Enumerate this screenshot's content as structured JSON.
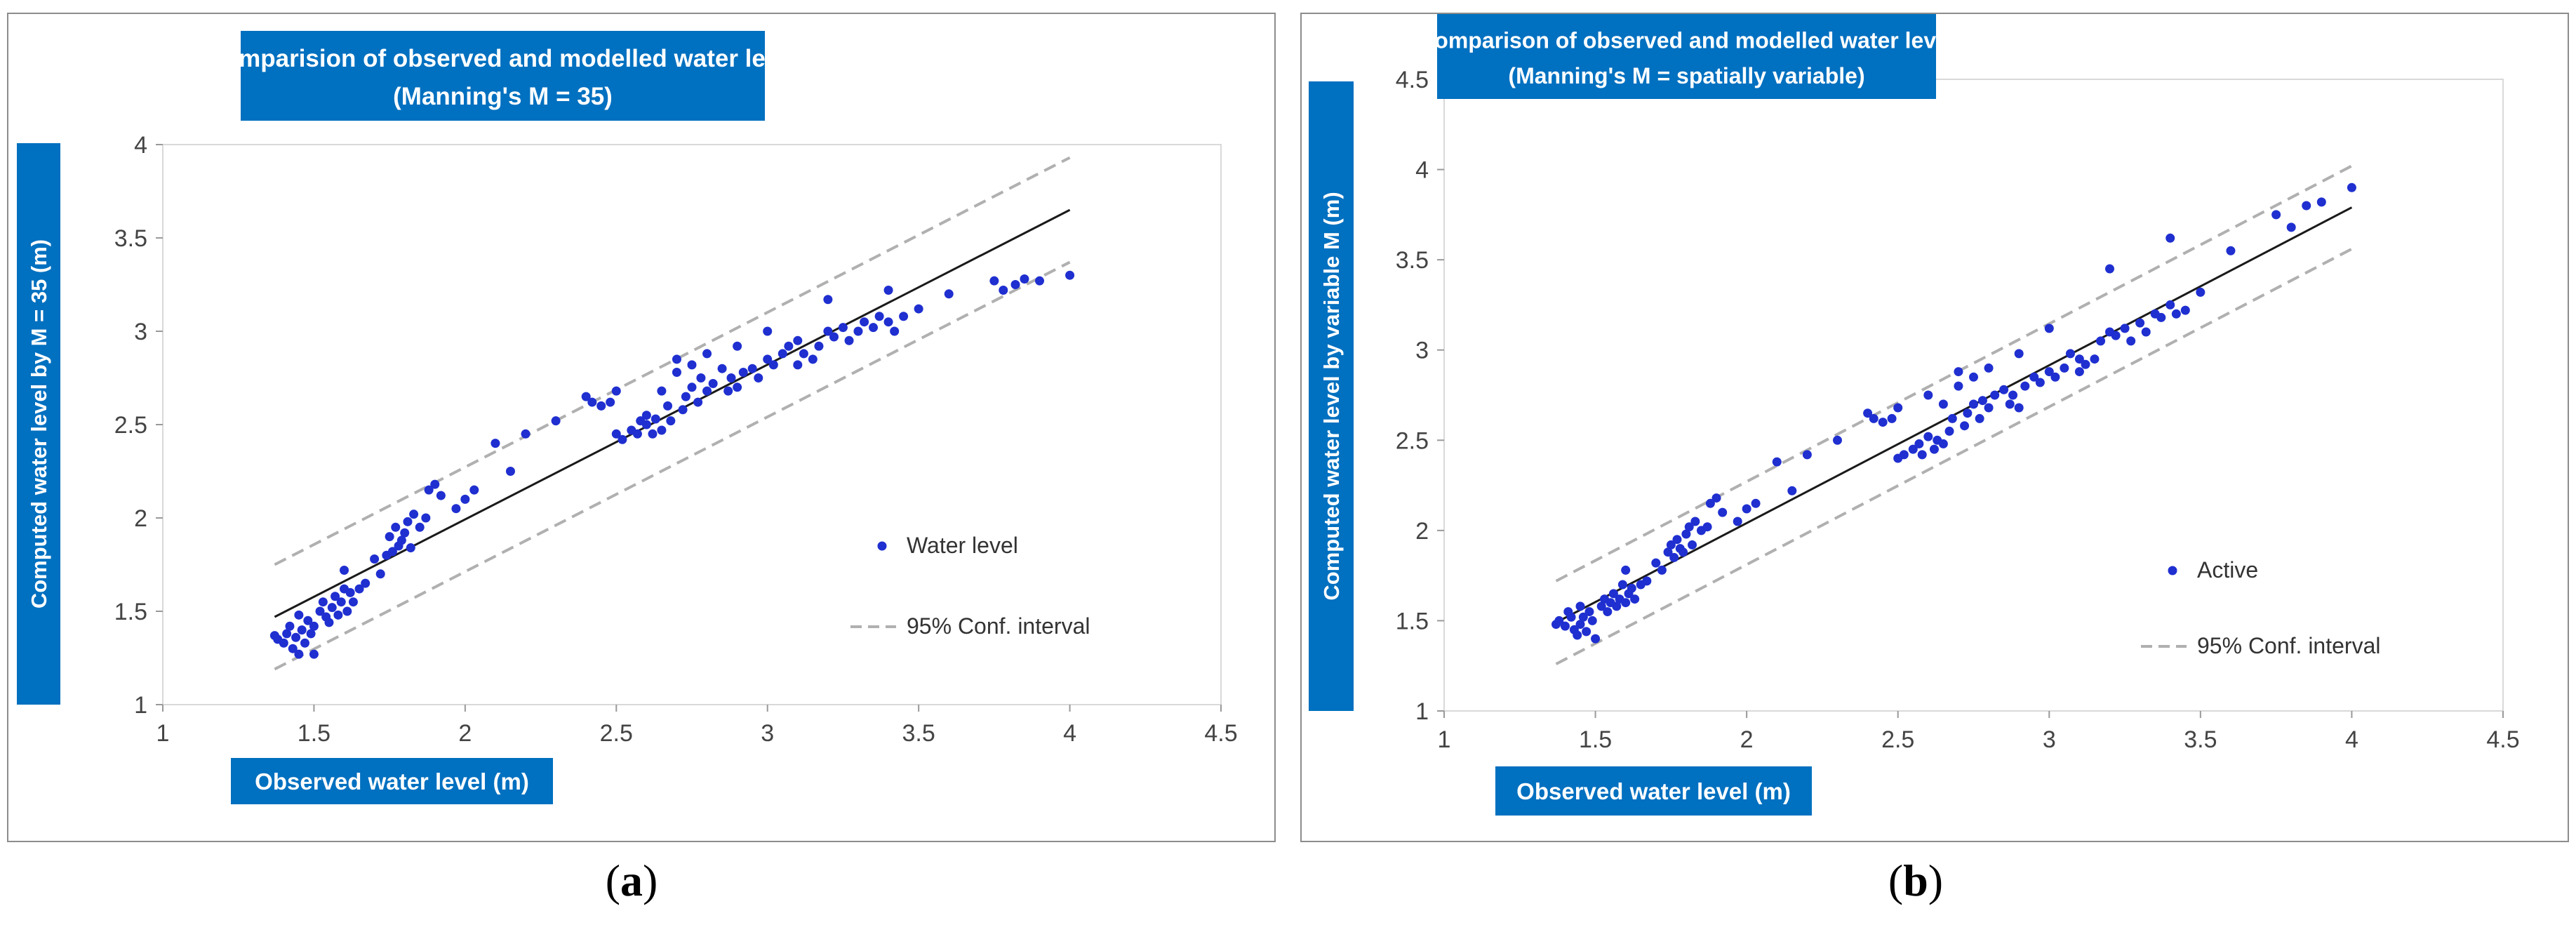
{
  "chart_data": [
    {
      "type": "scatter",
      "panel_label": "a",
      "title": [
        "Comparision of observed and modelled water level",
        "(Manning's M = 35)"
      ],
      "xlabel": "Observed water level (m)",
      "ylabel": "Computed water level by M = 35 (m)",
      "xlim": [
        1,
        4.5
      ],
      "ylim": [
        1,
        4
      ],
      "xticks": [
        "1",
        "1.5",
        "2",
        "2.5",
        "3",
        "3.5",
        "4",
        "4.5"
      ],
      "yticks": [
        "1",
        "1.5",
        "2",
        "2.5",
        "3",
        "3.5",
        "4"
      ],
      "legend": {
        "position": "right",
        "scatter": "Water level",
        "conf": "95% Conf. interval"
      },
      "fit_line": {
        "x": [
          1.37,
          4.0
        ],
        "y": [
          1.47,
          3.65
        ]
      },
      "conf_upper": {
        "x": [
          1.37,
          4.0
        ],
        "y": [
          1.75,
          3.93
        ]
      },
      "conf_lower": {
        "x": [
          1.37,
          4.0
        ],
        "y": [
          1.19,
          3.37
        ]
      },
      "points": [
        [
          1.37,
          1.37
        ],
        [
          1.38,
          1.35
        ],
        [
          1.4,
          1.33
        ],
        [
          1.41,
          1.38
        ],
        [
          1.42,
          1.42
        ],
        [
          1.43,
          1.3
        ],
        [
          1.44,
          1.36
        ],
        [
          1.45,
          1.48
        ],
        [
          1.45,
          1.27
        ],
        [
          1.46,
          1.4
        ],
        [
          1.47,
          1.33
        ],
        [
          1.48,
          1.45
        ],
        [
          1.49,
          1.38
        ],
        [
          1.5,
          1.27
        ],
        [
          1.5,
          1.42
        ],
        [
          1.52,
          1.5
        ],
        [
          1.53,
          1.55
        ],
        [
          1.54,
          1.47
        ],
        [
          1.55,
          1.44
        ],
        [
          1.56,
          1.52
        ],
        [
          1.57,
          1.58
        ],
        [
          1.58,
          1.48
        ],
        [
          1.59,
          1.55
        ],
        [
          1.6,
          1.62
        ],
        [
          1.6,
          1.72
        ],
        [
          1.61,
          1.5
        ],
        [
          1.62,
          1.6
        ],
        [
          1.63,
          1.55
        ],
        [
          1.65,
          1.62
        ],
        [
          1.67,
          1.65
        ],
        [
          1.7,
          1.78
        ],
        [
          1.72,
          1.7
        ],
        [
          1.74,
          1.8
        ],
        [
          1.75,
          1.9
        ],
        [
          1.76,
          1.82
        ],
        [
          1.77,
          1.95
        ],
        [
          1.78,
          1.85
        ],
        [
          1.79,
          1.88
        ],
        [
          1.8,
          1.92
        ],
        [
          1.81,
          1.98
        ],
        [
          1.82,
          1.84
        ],
        [
          1.83,
          2.02
        ],
        [
          1.85,
          1.95
        ],
        [
          1.87,
          2.0
        ],
        [
          1.88,
          2.15
        ],
        [
          1.9,
          2.18
        ],
        [
          1.92,
          2.12
        ],
        [
          1.97,
          2.05
        ],
        [
          2.0,
          2.1
        ],
        [
          2.03,
          2.15
        ],
        [
          2.1,
          2.4
        ],
        [
          2.15,
          2.25
        ],
        [
          2.2,
          2.45
        ],
        [
          2.3,
          2.52
        ],
        [
          2.4,
          2.65
        ],
        [
          2.42,
          2.62
        ],
        [
          2.45,
          2.6
        ],
        [
          2.48,
          2.62
        ],
        [
          2.5,
          2.45
        ],
        [
          2.5,
          2.68
        ],
        [
          2.52,
          2.42
        ],
        [
          2.55,
          2.47
        ],
        [
          2.57,
          2.45
        ],
        [
          2.58,
          2.52
        ],
        [
          2.6,
          2.5
        ],
        [
          2.6,
          2.55
        ],
        [
          2.62,
          2.45
        ],
        [
          2.63,
          2.53
        ],
        [
          2.65,
          2.47
        ],
        [
          2.65,
          2.68
        ],
        [
          2.67,
          2.6
        ],
        [
          2.68,
          2.52
        ],
        [
          2.7,
          2.78
        ],
        [
          2.7,
          2.85
        ],
        [
          2.72,
          2.58
        ],
        [
          2.73,
          2.65
        ],
        [
          2.75,
          2.7
        ],
        [
          2.75,
          2.82
        ],
        [
          2.77,
          2.62
        ],
        [
          2.78,
          2.75
        ],
        [
          2.8,
          2.68
        ],
        [
          2.8,
          2.88
        ],
        [
          2.82,
          2.72
        ],
        [
          2.85,
          2.8
        ],
        [
          2.87,
          2.68
        ],
        [
          2.88,
          2.75
        ],
        [
          2.9,
          2.92
        ],
        [
          2.9,
          2.7
        ],
        [
          2.92,
          2.78
        ],
        [
          2.95,
          2.8
        ],
        [
          2.97,
          2.75
        ],
        [
          3.0,
          2.85
        ],
        [
          3.0,
          3.0
        ],
        [
          3.02,
          2.82
        ],
        [
          3.05,
          2.88
        ],
        [
          3.07,
          2.92
        ],
        [
          3.1,
          2.95
        ],
        [
          3.1,
          2.82
        ],
        [
          3.12,
          2.88
        ],
        [
          3.15,
          2.85
        ],
        [
          3.17,
          2.92
        ],
        [
          3.2,
          3.0
        ],
        [
          3.2,
          3.17
        ],
        [
          3.22,
          2.97
        ],
        [
          3.25,
          3.02
        ],
        [
          3.27,
          2.95
        ],
        [
          3.3,
          3.0
        ],
        [
          3.32,
          3.05
        ],
        [
          3.35,
          3.02
        ],
        [
          3.37,
          3.08
        ],
        [
          3.4,
          3.05
        ],
        [
          3.4,
          3.22
        ],
        [
          3.42,
          3.0
        ],
        [
          3.45,
          3.08
        ],
        [
          3.5,
          3.12
        ],
        [
          3.6,
          3.2
        ],
        [
          3.75,
          3.27
        ],
        [
          3.78,
          3.22
        ],
        [
          3.82,
          3.25
        ],
        [
          3.85,
          3.28
        ],
        [
          3.9,
          3.27
        ],
        [
          4.0,
          3.3
        ]
      ]
    },
    {
      "type": "scatter",
      "panel_label": "b",
      "title": [
        "Comparison of observed and modelled water level",
        "(Manning's M = spatially variable)"
      ],
      "xlabel": "Observed water level (m)",
      "ylabel": "Computed water level by variable M  (m)",
      "xlim": [
        1,
        4.5
      ],
      "ylim": [
        1,
        4.5
      ],
      "xticks": [
        "1",
        "1.5",
        "2",
        "2.5",
        "3",
        "3.5",
        "4",
        "4.5"
      ],
      "yticks": [
        "1",
        "1.5",
        "2",
        "2.5",
        "3",
        "3.5",
        "4",
        "4.5"
      ],
      "legend": {
        "position": "right",
        "scatter": "Active",
        "conf": "95% Conf. interval"
      },
      "fit_line": {
        "x": [
          1.37,
          4.0
        ],
        "y": [
          1.49,
          3.79
        ]
      },
      "conf_upper": {
        "x": [
          1.37,
          4.0
        ],
        "y": [
          1.72,
          4.02
        ]
      },
      "conf_lower": {
        "x": [
          1.37,
          4.0
        ],
        "y": [
          1.26,
          3.56
        ]
      },
      "points": [
        [
          1.37,
          1.48
        ],
        [
          1.38,
          1.5
        ],
        [
          1.4,
          1.47
        ],
        [
          1.41,
          1.55
        ],
        [
          1.42,
          1.52
        ],
        [
          1.43,
          1.45
        ],
        [
          1.44,
          1.42
        ],
        [
          1.45,
          1.58
        ],
        [
          1.45,
          1.48
        ],
        [
          1.46,
          1.52
        ],
        [
          1.47,
          1.44
        ],
        [
          1.48,
          1.55
        ],
        [
          1.49,
          1.5
        ],
        [
          1.5,
          1.4
        ],
        [
          1.52,
          1.58
        ],
        [
          1.53,
          1.62
        ],
        [
          1.54,
          1.55
        ],
        [
          1.55,
          1.6
        ],
        [
          1.56,
          1.65
        ],
        [
          1.57,
          1.58
        ],
        [
          1.58,
          1.62
        ],
        [
          1.59,
          1.7
        ],
        [
          1.6,
          1.78
        ],
        [
          1.6,
          1.6
        ],
        [
          1.61,
          1.65
        ],
        [
          1.62,
          1.68
        ],
        [
          1.63,
          1.62
        ],
        [
          1.65,
          1.7
        ],
        [
          1.67,
          1.72
        ],
        [
          1.7,
          1.82
        ],
        [
          1.72,
          1.78
        ],
        [
          1.74,
          1.88
        ],
        [
          1.75,
          1.92
        ],
        [
          1.76,
          1.85
        ],
        [
          1.77,
          1.95
        ],
        [
          1.78,
          1.9
        ],
        [
          1.79,
          1.88
        ],
        [
          1.8,
          1.98
        ],
        [
          1.81,
          2.02
        ],
        [
          1.82,
          1.92
        ],
        [
          1.83,
          2.05
        ],
        [
          1.85,
          2.0
        ],
        [
          1.87,
          2.02
        ],
        [
          1.88,
          2.15
        ],
        [
          1.9,
          2.18
        ],
        [
          1.92,
          2.1
        ],
        [
          1.97,
          2.05
        ],
        [
          2.0,
          2.12
        ],
        [
          2.03,
          2.15
        ],
        [
          2.1,
          2.38
        ],
        [
          2.15,
          2.22
        ],
        [
          2.2,
          2.42
        ],
        [
          2.3,
          2.5
        ],
        [
          2.4,
          2.65
        ],
        [
          2.42,
          2.62
        ],
        [
          2.45,
          2.6
        ],
        [
          2.48,
          2.62
        ],
        [
          2.5,
          2.4
        ],
        [
          2.5,
          2.68
        ],
        [
          2.52,
          2.42
        ],
        [
          2.55,
          2.45
        ],
        [
          2.57,
          2.48
        ],
        [
          2.58,
          2.42
        ],
        [
          2.6,
          2.52
        ],
        [
          2.6,
          2.75
        ],
        [
          2.62,
          2.45
        ],
        [
          2.63,
          2.5
        ],
        [
          2.65,
          2.48
        ],
        [
          2.65,
          2.7
        ],
        [
          2.67,
          2.55
        ],
        [
          2.68,
          2.62
        ],
        [
          2.7,
          2.8
        ],
        [
          2.7,
          2.88
        ],
        [
          2.72,
          2.58
        ],
        [
          2.73,
          2.65
        ],
        [
          2.75,
          2.7
        ],
        [
          2.75,
          2.85
        ],
        [
          2.77,
          2.62
        ],
        [
          2.78,
          2.72
        ],
        [
          2.8,
          2.68
        ],
        [
          2.8,
          2.9
        ],
        [
          2.82,
          2.75
        ],
        [
          2.85,
          2.78
        ],
        [
          2.87,
          2.7
        ],
        [
          2.88,
          2.75
        ],
        [
          2.9,
          2.98
        ],
        [
          2.9,
          2.68
        ],
        [
          2.92,
          2.8
        ],
        [
          2.95,
          2.85
        ],
        [
          2.97,
          2.82
        ],
        [
          3.0,
          2.88
        ],
        [
          3.0,
          3.12
        ],
        [
          3.02,
          2.85
        ],
        [
          3.05,
          2.9
        ],
        [
          3.07,
          2.98
        ],
        [
          3.1,
          2.95
        ],
        [
          3.1,
          2.88
        ],
        [
          3.12,
          2.92
        ],
        [
          3.15,
          2.95
        ],
        [
          3.17,
          3.05
        ],
        [
          3.2,
          3.1
        ],
        [
          3.2,
          3.45
        ],
        [
          3.22,
          3.08
        ],
        [
          3.25,
          3.12
        ],
        [
          3.27,
          3.05
        ],
        [
          3.3,
          3.15
        ],
        [
          3.32,
          3.1
        ],
        [
          3.35,
          3.2
        ],
        [
          3.37,
          3.18
        ],
        [
          3.4,
          3.25
        ],
        [
          3.4,
          3.62
        ],
        [
          3.42,
          3.2
        ],
        [
          3.45,
          3.22
        ],
        [
          3.5,
          3.32
        ],
        [
          3.6,
          3.55
        ],
        [
          3.75,
          3.75
        ],
        [
          3.8,
          3.68
        ],
        [
          3.85,
          3.8
        ],
        [
          3.9,
          3.82
        ],
        [
          4.0,
          3.9
        ]
      ]
    }
  ],
  "captions": {
    "a": "a",
    "b": "b"
  },
  "colors": {
    "title_bg": "#0070c0",
    "points": "#1f2fd0",
    "fit": "#1a1a1a",
    "conf": "#b0b0b0",
    "grid": "#d9d9d9"
  }
}
